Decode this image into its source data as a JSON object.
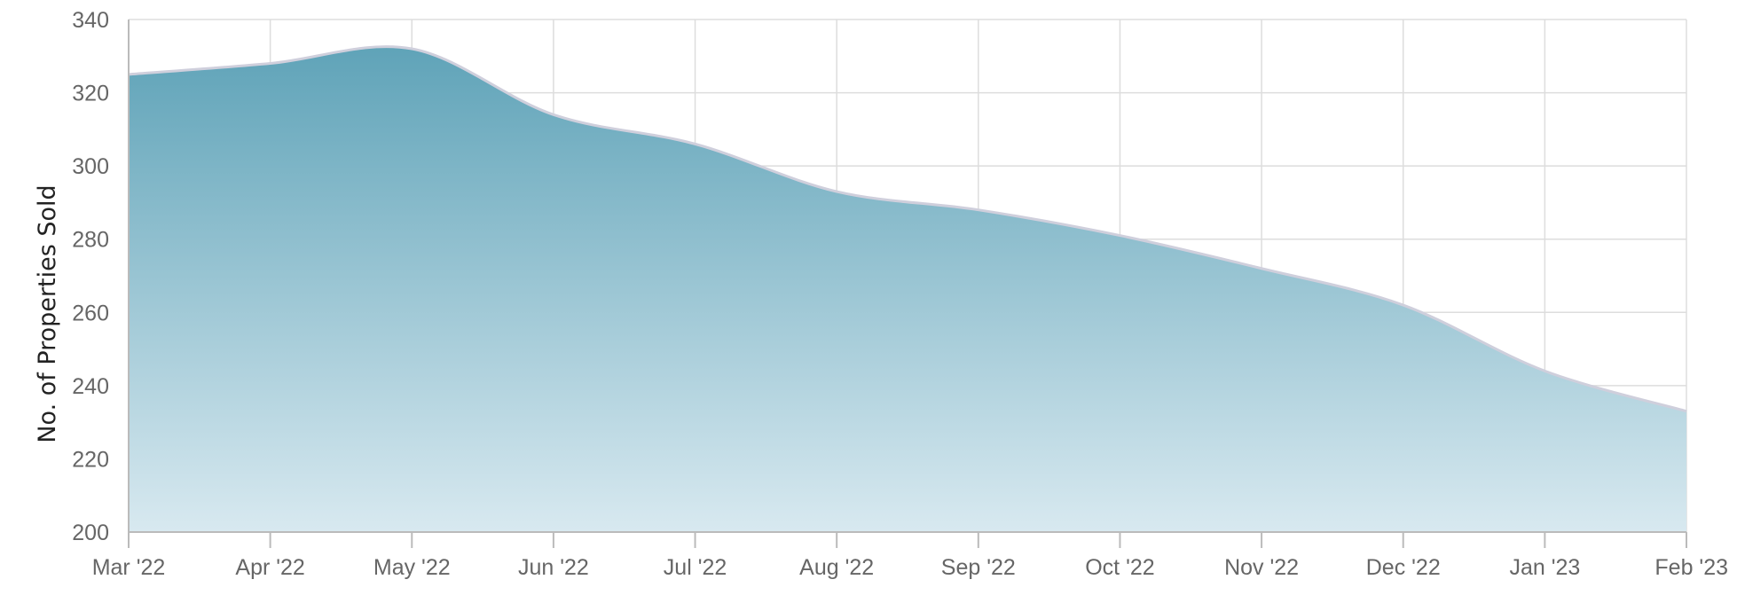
{
  "chart_data": {
    "type": "area",
    "title": "",
    "xlabel": "",
    "ylabel": "No. of Properties Sold",
    "x": [
      "Mar '22",
      "Apr '22",
      "May '22",
      "Jun '22",
      "Jul '22",
      "Aug '22",
      "Sep '22",
      "Oct '22",
      "Nov '22",
      "Dec '22",
      "Jan '23",
      "Feb '23"
    ],
    "series": [
      {
        "values": [
          325,
          328,
          332,
          314,
          306,
          293,
          288,
          281,
          272,
          262,
          244,
          233
        ],
        "color": "#5fa3b8"
      }
    ],
    "ylim": [
      200,
      340
    ],
    "yticks": [
      200,
      220,
      240,
      260,
      280,
      300,
      320,
      340
    ],
    "grid": true,
    "legend": "none",
    "colors": {
      "fill_top": "#5fa3b8",
      "fill_bottom": "#d8e9f0",
      "line": "#cfcfdc"
    }
  }
}
